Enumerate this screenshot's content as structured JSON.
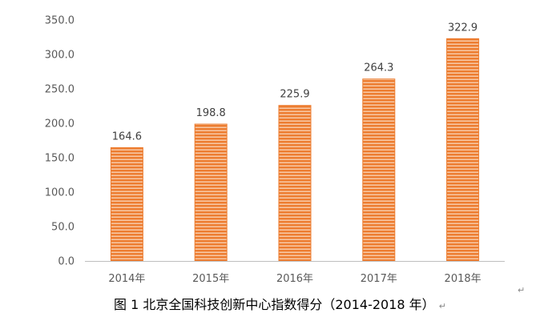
{
  "chart_data": {
    "type": "bar",
    "categories": [
      "2014年",
      "2015年",
      "2016年",
      "2017年",
      "2018年"
    ],
    "values": [
      164.6,
      198.8,
      225.9,
      264.3,
      322.9
    ],
    "data_labels": [
      "164.6",
      "198.8",
      "225.9",
      "264.3",
      "322.9"
    ],
    "y_ticks": [
      "0.0",
      "50.0",
      "100.0",
      "150.0",
      "200.0",
      "250.0",
      "300.0",
      "350.0"
    ],
    "ylim": [
      0,
      350
    ],
    "title": "图 1 北京全国科技创新中心指数得分（2014-2018 年）",
    "xlabel": "",
    "ylabel": "",
    "grid": false,
    "legend": "none",
    "bar_color": "#ED7D31"
  },
  "paragraph_mark": "↵"
}
